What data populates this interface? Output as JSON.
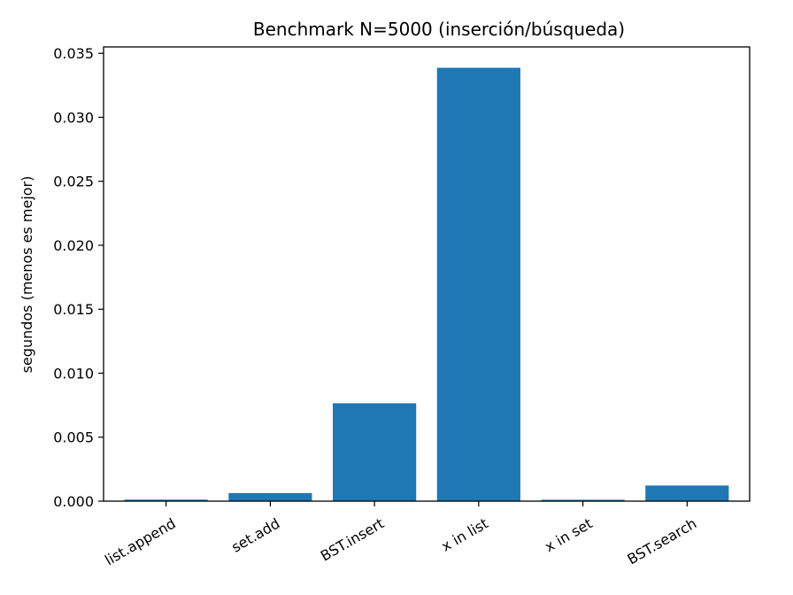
{
  "chart_data": {
    "type": "bar",
    "title": "Benchmark N=5000 (inserción/búsqueda)",
    "xlabel": "",
    "ylabel": "segundos (menos es mejor)",
    "categories": [
      "list.append",
      "set.add",
      "BST.insert",
      "x in list",
      "x in set",
      "BST.search"
    ],
    "values": [
      0.00012,
      0.00063,
      0.00765,
      0.03387,
      0.00011,
      0.00122
    ],
    "ylim": [
      0,
      0.0355
    ],
    "yticks": [
      0.0,
      0.005,
      0.01,
      0.015,
      0.02,
      0.025,
      0.03,
      0.035
    ],
    "ytick_labels": [
      "0.000",
      "0.005",
      "0.010",
      "0.015",
      "0.020",
      "0.025",
      "0.030",
      "0.035"
    ],
    "bar_color": "#1f77b4",
    "grid": false,
    "legend": "none"
  }
}
